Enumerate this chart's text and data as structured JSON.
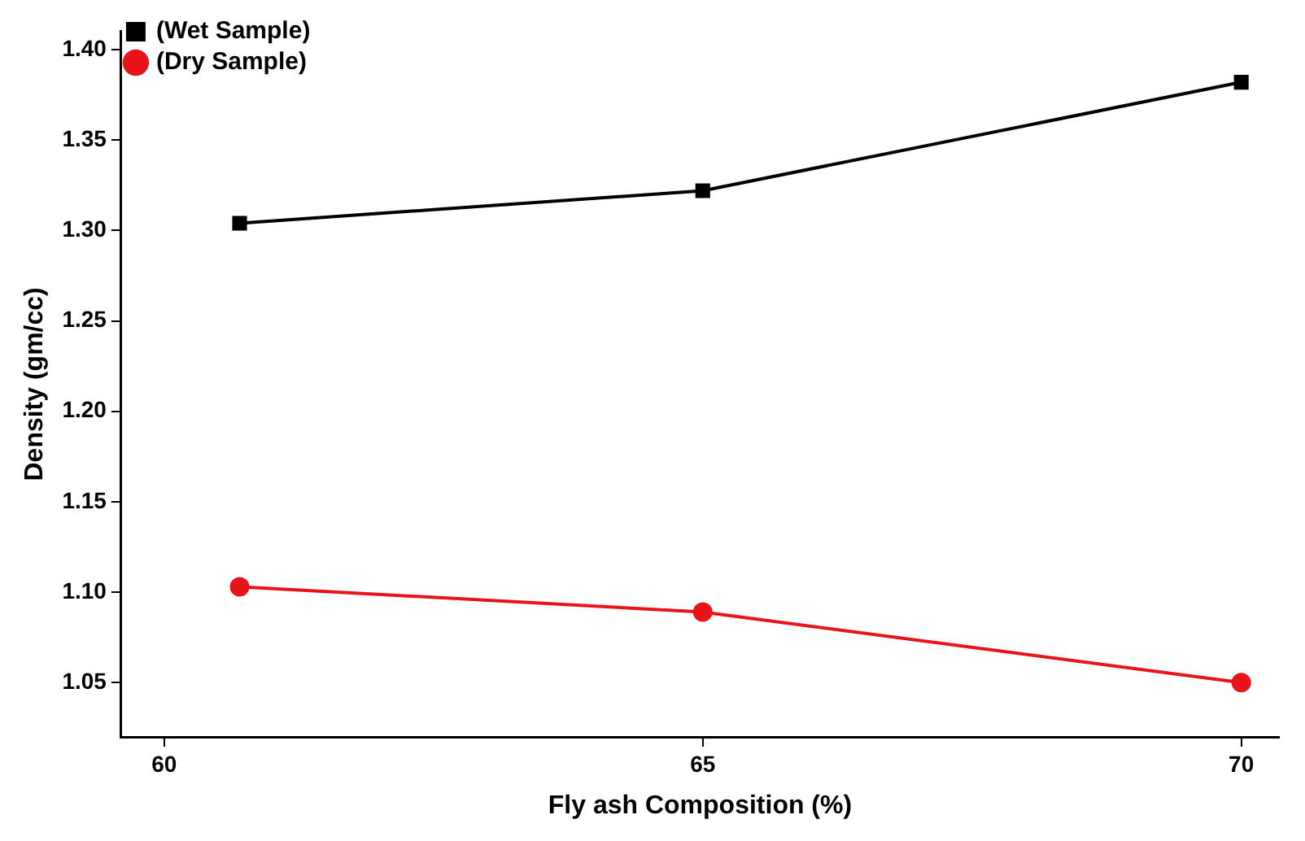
{
  "chart_data": {
    "type": "line",
    "xlabel": "Fly ash Composition (%)",
    "ylabel": "Density (gm/cc)",
    "x": [
      60.7,
      65,
      70
    ],
    "series": [
      {
        "name": "(Wet Sample)",
        "color": "#000000",
        "marker": "square",
        "values": [
          1.304,
          1.322,
          1.382
        ]
      },
      {
        "name": "(Dry Sample)",
        "color": "#e8141b",
        "marker": "circle",
        "values": [
          1.103,
          1.089,
          1.05
        ]
      }
    ],
    "xlim": [
      59.6,
      70.35
    ],
    "xticks": [
      60,
      65,
      70
    ],
    "ylim": [
      1.02,
      1.41
    ],
    "yticks": [
      1.05,
      {
        "value": 1.1,
        "label": "1.10"
      },
      1.15,
      {
        "value": 1.2,
        "label": "1.20"
      },
      1.25,
      {
        "value": 1.3,
        "label": "1.30"
      },
      1.35,
      {
        "value": 1.4,
        "label": "1.40"
      }
    ],
    "grid": false,
    "legend": "top left",
    "line_style": "solid"
  }
}
